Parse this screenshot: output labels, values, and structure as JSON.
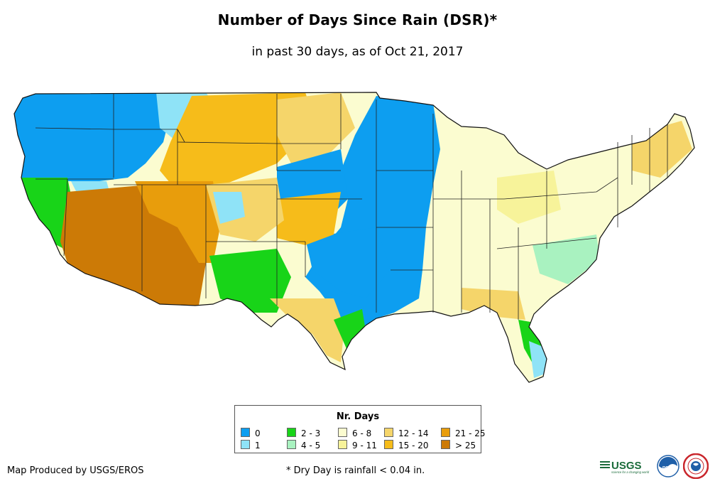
{
  "header": {
    "title": "Number of Days Since Rain (DSR)*",
    "subtitle": "in past 30 days, as of Oct 21, 2017"
  },
  "map": {
    "region": "Contiguous United States",
    "metric": "days since rain"
  },
  "legend": {
    "title": "Nr. Days",
    "items": [
      {
        "label": "0",
        "color": "#0d9ef0"
      },
      {
        "label": "1",
        "color": "#8fe3f7"
      },
      {
        "label": "2 - 3",
        "color": "#18d418"
      },
      {
        "label": "4 - 5",
        "color": "#a9f2c0"
      },
      {
        "label": "6 - 8",
        "color": "#fbfcd0"
      },
      {
        "label": "9 - 11",
        "color": "#f7f39a"
      },
      {
        "label": "12 - 14",
        "color": "#f5d56a"
      },
      {
        "label": "15 - 20",
        "color": "#f6bc1a"
      },
      {
        "label": "21 - 25",
        "color": "#e89d0c"
      },
      {
        "label": "> 25",
        "color": "#cc7a06"
      }
    ]
  },
  "footer": {
    "producer": "Map Produced by USGS/EROS",
    "footnote": "* Dry Day is rainfall < 0.04 in."
  },
  "logos": {
    "usgs": {
      "text": "USGS",
      "tagline": "science for a changing world",
      "color": "#1a6b3a"
    },
    "noaa": {
      "text": "noaa",
      "color": "#1f5fa8"
    },
    "nws": {
      "color": "#c9252b"
    }
  }
}
